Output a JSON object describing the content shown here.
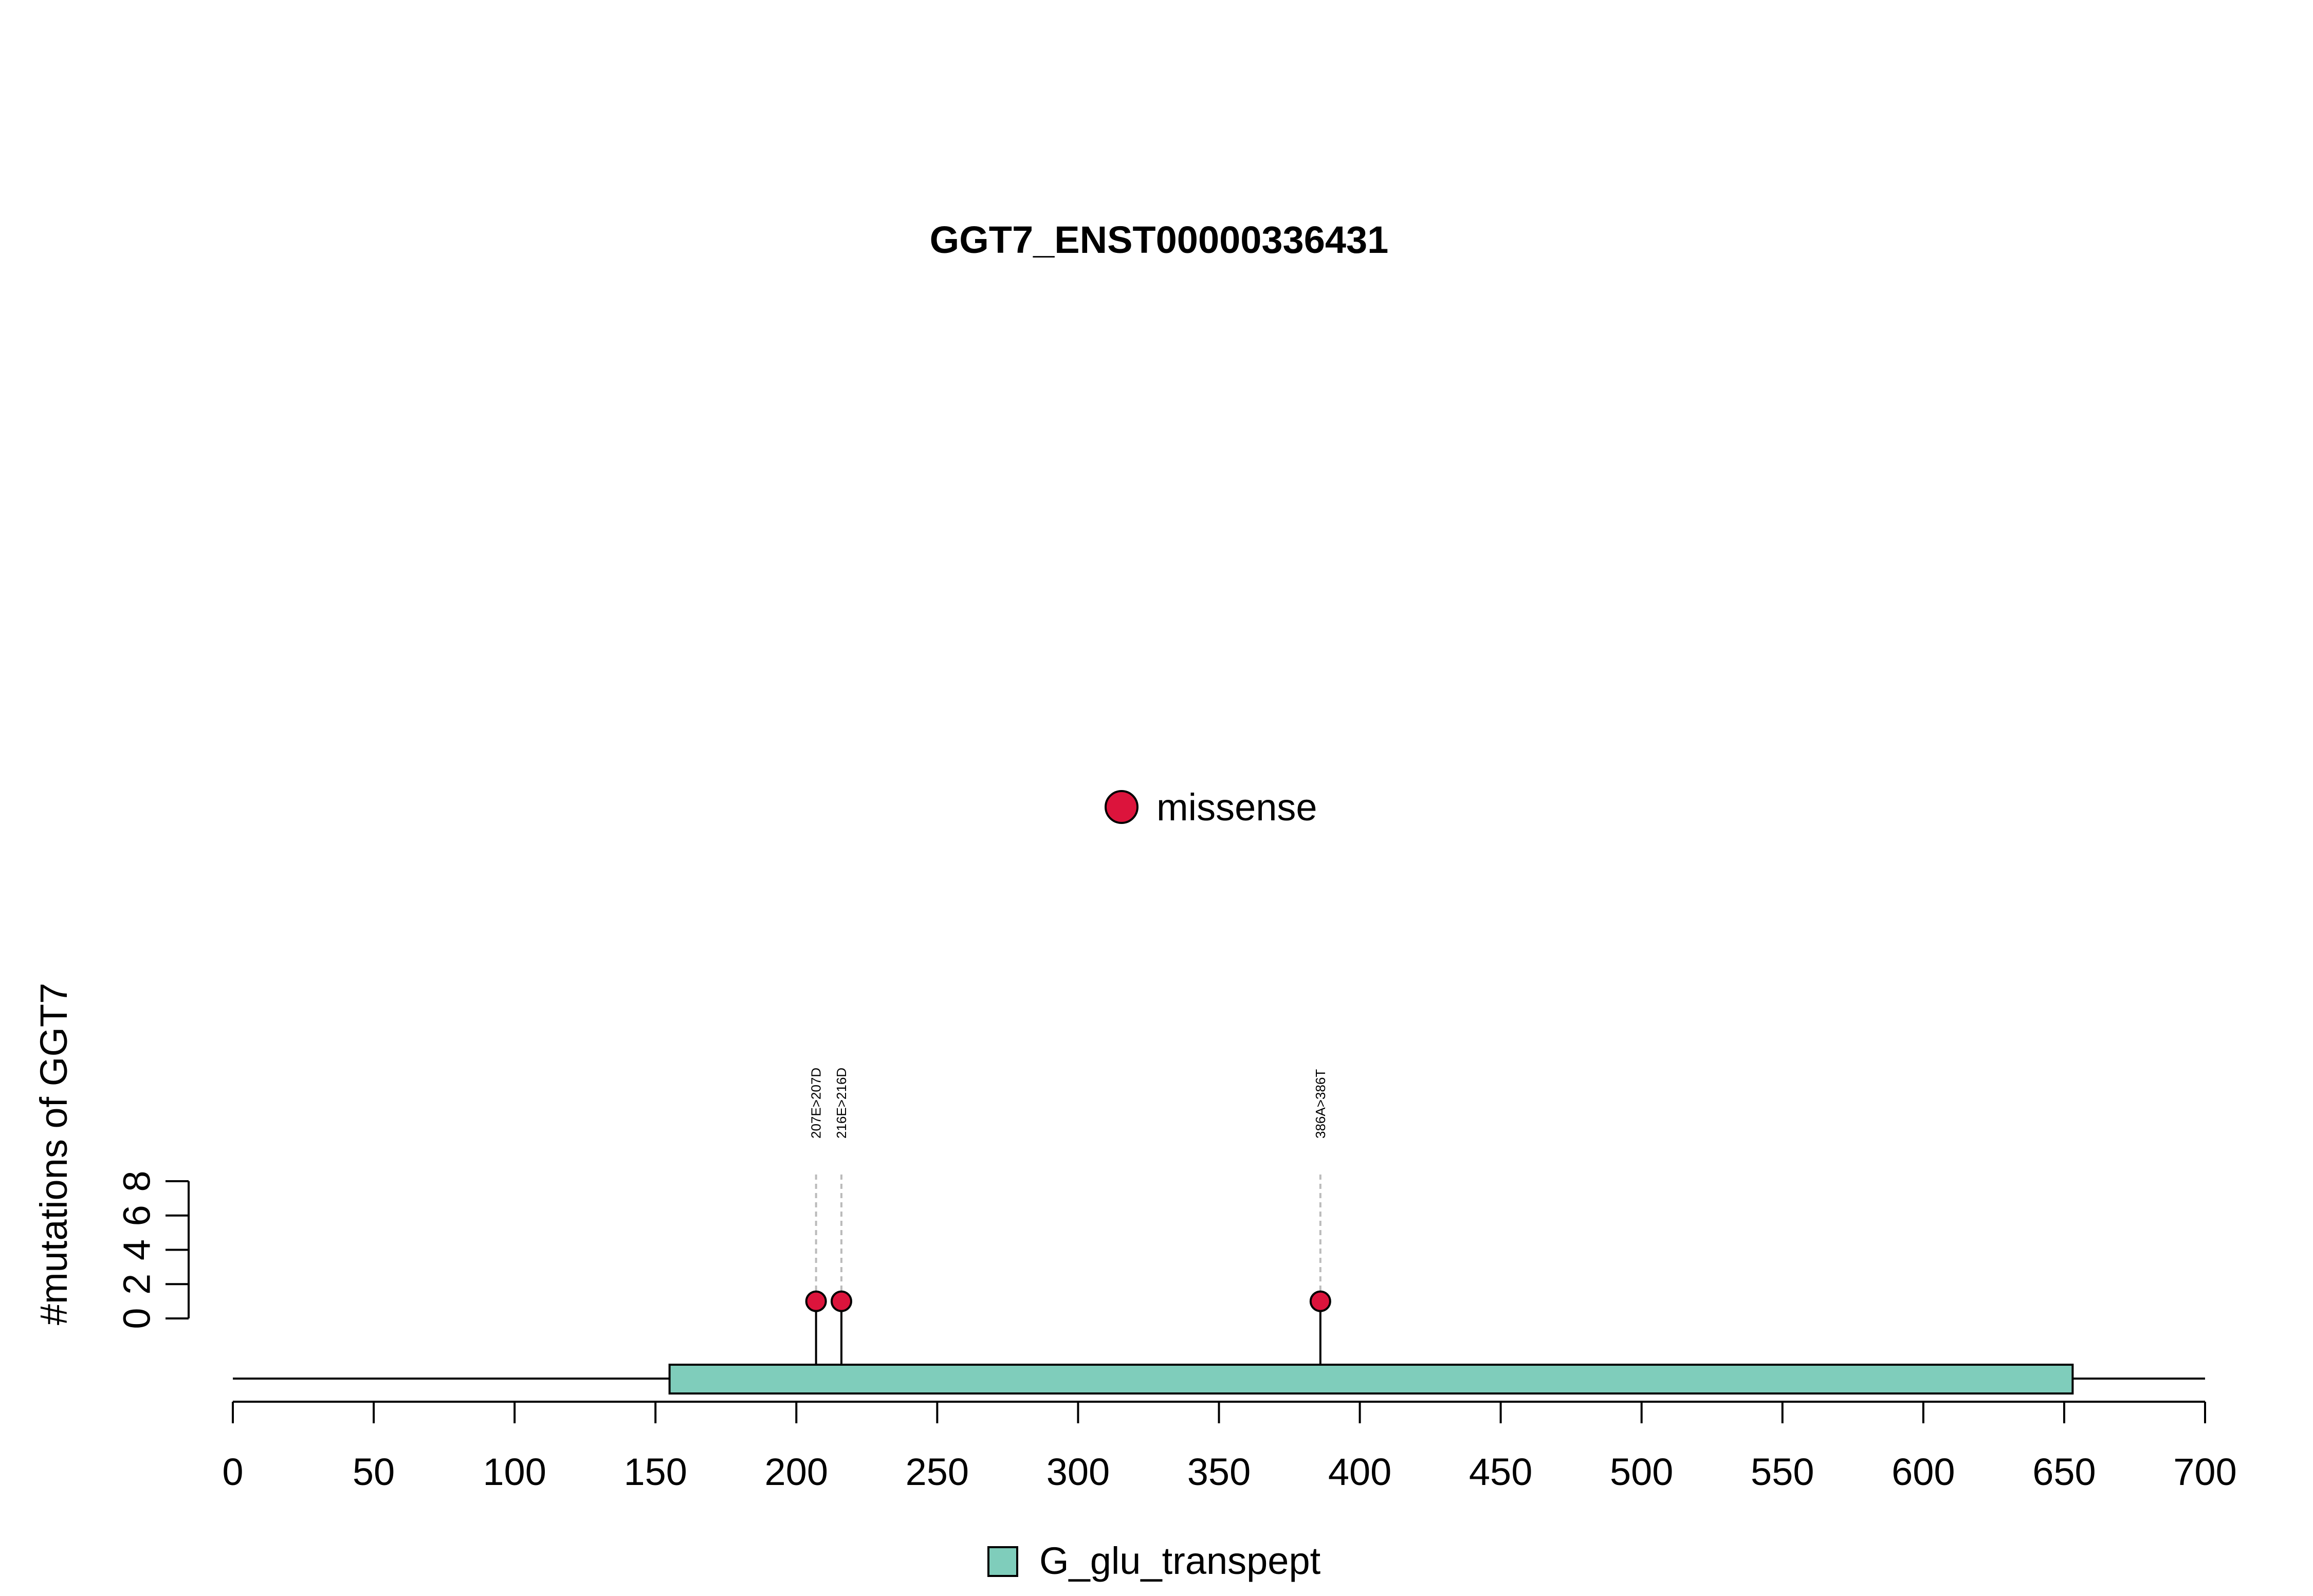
{
  "chart_data": {
    "type": "scatter",
    "subtype": "lollipop",
    "title": "GGT7_ENST00000336431",
    "ylabel": "#mutations of GGT7",
    "xlabel": "",
    "xlim": [
      0,
      700
    ],
    "x_ticks": [
      0,
      50,
      100,
      150,
      200,
      250,
      300,
      350,
      400,
      450,
      500,
      550,
      600,
      650,
      700
    ],
    "ylim": [
      0,
      8
    ],
    "y_ticks": [
      0,
      2,
      4,
      6,
      8
    ],
    "protein_length": 700,
    "domains": [
      {
        "name": "G_glu_transpept",
        "start": 155,
        "end": 653,
        "color": "#7fcdbb"
      }
    ],
    "series": [
      {
        "name": "missense",
        "color": "#dc143c",
        "points": [
          {
            "x": 207,
            "y": 1,
            "label": "207E>207D"
          },
          {
            "x": 216,
            "y": 1,
            "label": "216E>216D"
          },
          {
            "x": 386,
            "y": 1,
            "label": "386A>386T"
          }
        ]
      }
    ],
    "legend_top": [
      "missense"
    ],
    "legend_bottom": [
      "G_glu_transpept"
    ]
  }
}
